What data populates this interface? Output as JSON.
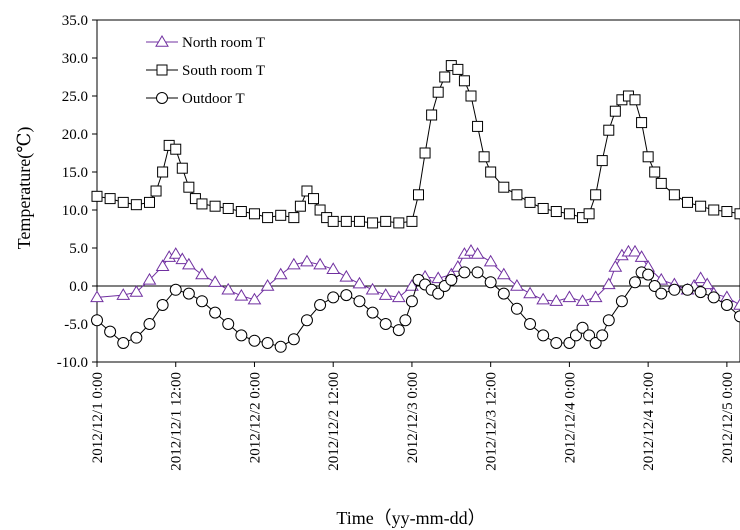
{
  "chart_data": {
    "type": "line",
    "title": "",
    "xlabel": "Time（yy-mm-dd）",
    "ylabel": "Temperature(℃)",
    "ylim": [
      -10,
      35
    ],
    "yticks": [
      "35.0",
      "30.0",
      "25.0",
      "20.0",
      "15.0",
      "10.0",
      "5.0",
      "0.0",
      "-5.0",
      "-10.0"
    ],
    "xlim": [
      0,
      98
    ],
    "xticks": [
      {
        "hours": 0,
        "label": "2012/12/1 0:00"
      },
      {
        "hours": 12,
        "label": "2012/12/1 12:00"
      },
      {
        "hours": 24,
        "label": "2012/12/2 0:00"
      },
      {
        "hours": 36,
        "label": "2012/12/2 12:00"
      },
      {
        "hours": 48,
        "label": "2012/12/3 0:00"
      },
      {
        "hours": 60,
        "label": "2012/12/3 12:00"
      },
      {
        "hours": 72,
        "label": "2012/12/4 0:00"
      },
      {
        "hours": 84,
        "label": "2012/12/4 12:00"
      },
      {
        "hours": 96,
        "label": "2012/12/5 0:00"
      }
    ],
    "grid": false,
    "legend_position": "top-left",
    "series": [
      {
        "name": "North room T",
        "color": "#7030a0",
        "marker": "triangle",
        "points": [
          [
            0,
            -1.5
          ],
          [
            4,
            -1.2
          ],
          [
            6,
            -0.8
          ],
          [
            8,
            0.8
          ],
          [
            10,
            2.6
          ],
          [
            11,
            3.8
          ],
          [
            12,
            4.2
          ],
          [
            13,
            3.5
          ],
          [
            14,
            2.8
          ],
          [
            16,
            1.5
          ],
          [
            18,
            0.5
          ],
          [
            20,
            -0.5
          ],
          [
            22,
            -1.3
          ],
          [
            24,
            -1.8
          ],
          [
            26,
            0.0
          ],
          [
            28,
            1.5
          ],
          [
            30,
            2.8
          ],
          [
            32,
            3.2
          ],
          [
            34,
            2.8
          ],
          [
            36,
            2.2
          ],
          [
            38,
            1.2
          ],
          [
            40,
            0.3
          ],
          [
            42,
            -0.5
          ],
          [
            44,
            -1.2
          ],
          [
            46,
            -1.5
          ],
          [
            48,
            0.0
          ],
          [
            50,
            1.2
          ],
          [
            52,
            1.0
          ],
          [
            54,
            1.5
          ],
          [
            55,
            2.5
          ],
          [
            56,
            4.2
          ],
          [
            57,
            4.6
          ],
          [
            58,
            4.2
          ],
          [
            60,
            3.2
          ],
          [
            62,
            1.5
          ],
          [
            64,
            0.0
          ],
          [
            66,
            -1.0
          ],
          [
            68,
            -1.8
          ],
          [
            70,
            -2.0
          ],
          [
            72,
            -1.5
          ],
          [
            74,
            -2.0
          ],
          [
            76,
            -1.5
          ],
          [
            78,
            0.2
          ],
          [
            79,
            2.5
          ],
          [
            80,
            4.0
          ],
          [
            81,
            4.5
          ],
          [
            82,
            4.5
          ],
          [
            83,
            3.8
          ],
          [
            84,
            2.5
          ],
          [
            86,
            0.8
          ],
          [
            88,
            0.2
          ],
          [
            90,
            -0.5
          ],
          [
            91,
            0.0
          ],
          [
            92,
            1.0
          ],
          [
            93,
            0.2
          ],
          [
            94,
            -1.0
          ],
          [
            96,
            -1.5
          ],
          [
            98,
            -2.5
          ]
        ]
      },
      {
        "name": "South room T",
        "color": "#000000",
        "marker": "square",
        "points": [
          [
            0,
            11.8
          ],
          [
            2,
            11.5
          ],
          [
            4,
            11.0
          ],
          [
            6,
            10.7
          ],
          [
            8,
            11.0
          ],
          [
            9,
            12.5
          ],
          [
            10,
            15.0
          ],
          [
            11,
            18.5
          ],
          [
            12,
            18.0
          ],
          [
            13,
            15.5
          ],
          [
            14,
            13.0
          ],
          [
            15,
            11.5
          ],
          [
            16,
            10.8
          ],
          [
            18,
            10.5
          ],
          [
            20,
            10.2
          ],
          [
            22,
            9.8
          ],
          [
            24,
            9.5
          ],
          [
            26,
            9.0
          ],
          [
            28,
            9.3
          ],
          [
            30,
            9.0
          ],
          [
            31,
            10.5
          ],
          [
            32,
            12.5
          ],
          [
            33,
            11.5
          ],
          [
            34,
            10.0
          ],
          [
            35,
            9.0
          ],
          [
            36,
            8.5
          ],
          [
            38,
            8.5
          ],
          [
            40,
            8.5
          ],
          [
            42,
            8.3
          ],
          [
            44,
            8.5
          ],
          [
            46,
            8.3
          ],
          [
            48,
            8.5
          ],
          [
            49,
            12.0
          ],
          [
            50,
            17.5
          ],
          [
            51,
            22.5
          ],
          [
            52,
            25.5
          ],
          [
            53,
            27.5
          ],
          [
            54,
            29.0
          ],
          [
            55,
            28.5
          ],
          [
            56,
            27.0
          ],
          [
            57,
            25.0
          ],
          [
            58,
            21.0
          ],
          [
            59,
            17.0
          ],
          [
            60,
            15.0
          ],
          [
            62,
            13.0
          ],
          [
            64,
            12.0
          ],
          [
            66,
            11.0
          ],
          [
            68,
            10.2
          ],
          [
            70,
            9.8
          ],
          [
            72,
            9.5
          ],
          [
            74,
            9.0
          ],
          [
            75,
            9.5
          ],
          [
            76,
            12.0
          ],
          [
            77,
            16.5
          ],
          [
            78,
            20.5
          ],
          [
            79,
            23.0
          ],
          [
            80,
            24.5
          ],
          [
            81,
            25.0
          ],
          [
            82,
            24.5
          ],
          [
            83,
            21.5
          ],
          [
            84,
            17.0
          ],
          [
            85,
            15.0
          ],
          [
            86,
            13.5
          ],
          [
            88,
            12.0
          ],
          [
            90,
            11.0
          ],
          [
            92,
            10.5
          ],
          [
            94,
            10.0
          ],
          [
            96,
            9.8
          ],
          [
            98,
            9.5
          ]
        ]
      },
      {
        "name": "Outdoor T",
        "color": "#000000",
        "marker": "circle",
        "points": [
          [
            0,
            -4.5
          ],
          [
            2,
            -6.0
          ],
          [
            4,
            -7.5
          ],
          [
            6,
            -6.8
          ],
          [
            8,
            -5.0
          ],
          [
            10,
            -2.5
          ],
          [
            12,
            -0.5
          ],
          [
            14,
            -1.0
          ],
          [
            16,
            -2.0
          ],
          [
            18,
            -3.5
          ],
          [
            20,
            -5.0
          ],
          [
            22,
            -6.5
          ],
          [
            24,
            -7.2
          ],
          [
            26,
            -7.5
          ],
          [
            28,
            -8.0
          ],
          [
            30,
            -7.0
          ],
          [
            32,
            -4.5
          ],
          [
            34,
            -2.5
          ],
          [
            36,
            -1.5
          ],
          [
            38,
            -1.2
          ],
          [
            40,
            -2.0
          ],
          [
            42,
            -3.5
          ],
          [
            44,
            -5.0
          ],
          [
            46,
            -5.8
          ],
          [
            47,
            -4.5
          ],
          [
            48,
            -2.0
          ],
          [
            49,
            0.8
          ],
          [
            50,
            0.2
          ],
          [
            51,
            -0.5
          ],
          [
            52,
            -1.0
          ],
          [
            53,
            0.0
          ],
          [
            54,
            0.8
          ],
          [
            56,
            1.8
          ],
          [
            58,
            1.8
          ],
          [
            60,
            0.5
          ],
          [
            62,
            -1.0
          ],
          [
            64,
            -3.0
          ],
          [
            66,
            -5.0
          ],
          [
            68,
            -6.5
          ],
          [
            70,
            -7.5
          ],
          [
            72,
            -7.5
          ],
          [
            73,
            -6.5
          ],
          [
            74,
            -5.5
          ],
          [
            75,
            -6.5
          ],
          [
            76,
            -7.5
          ],
          [
            77,
            -6.5
          ],
          [
            78,
            -4.5
          ],
          [
            80,
            -2.0
          ],
          [
            82,
            0.5
          ],
          [
            83,
            1.8
          ],
          [
            84,
            1.5
          ],
          [
            85,
            0.0
          ],
          [
            86,
            -1.0
          ],
          [
            88,
            -0.5
          ],
          [
            90,
            -0.5
          ],
          [
            92,
            -0.8
          ],
          [
            94,
            -1.5
          ],
          [
            96,
            -2.5
          ],
          [
            98,
            -4.0
          ]
        ]
      }
    ]
  }
}
